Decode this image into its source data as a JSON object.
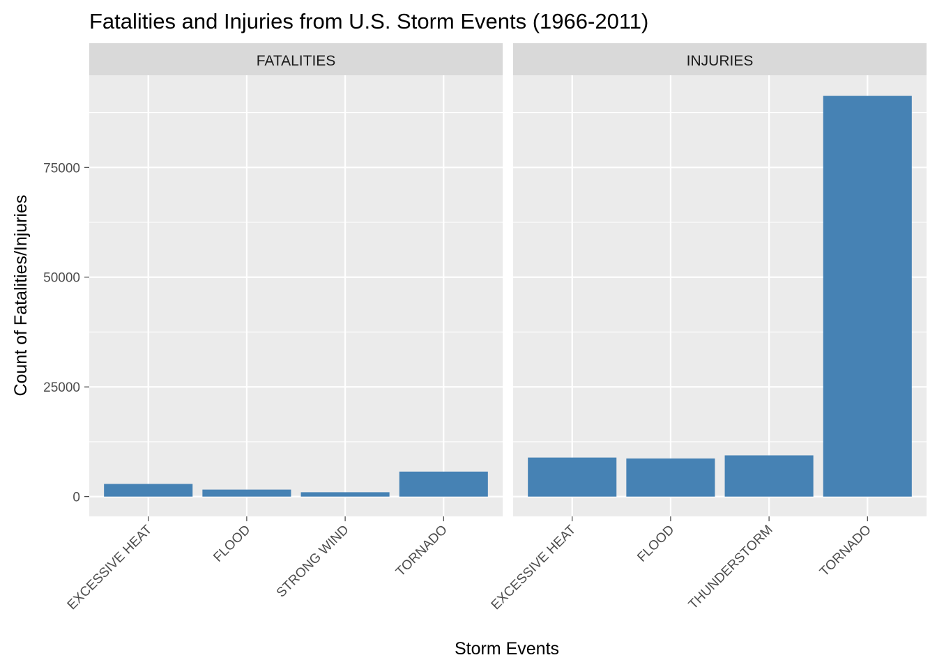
{
  "chart_data": {
    "type": "bar",
    "title": "Fatalities and Injuries from U.S. Storm Events (1966-2011)",
    "xlabel": "Storm Events",
    "ylabel": "Count of Fatalities/Injuries",
    "ylim": [
      -4500,
      96000
    ],
    "yticks": [
      0,
      25000,
      50000,
      75000
    ],
    "grid": true,
    "bar_color": "#4682B4",
    "panel_bg": "#EBEBEB",
    "strip_bg": "#D9D9D9",
    "facets": [
      {
        "strip": "FATALITIES",
        "categories": [
          "EXCESSIVE HEAT",
          "FLOOD",
          "STRONG WIND",
          "TORNADO"
        ],
        "values": [
          2900,
          1600,
          1000,
          5700
        ]
      },
      {
        "strip": "INJURIES",
        "categories": [
          "EXCESSIVE HEAT",
          "FLOOD",
          "THUNDERSTORM",
          "TORNADO"
        ],
        "values": [
          8900,
          8700,
          9400,
          91300
        ]
      }
    ]
  }
}
